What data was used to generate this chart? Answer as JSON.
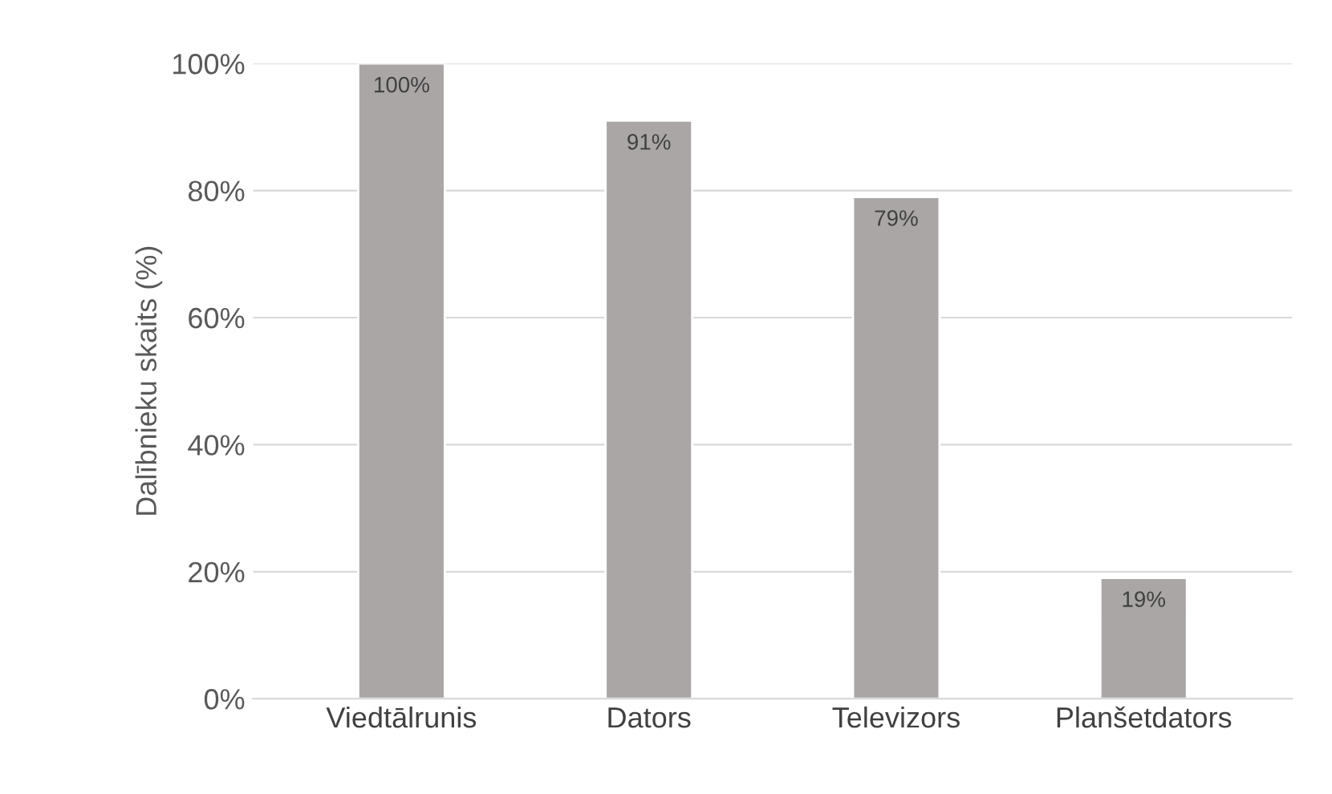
{
  "chart_data": {
    "type": "bar",
    "ylabel": "Dalībnieku skaits (%)",
    "categories": [
      "Viedtālrunis",
      "Dators",
      "Televizors",
      "Planšetdators"
    ],
    "values": [
      100,
      91,
      79,
      19
    ],
    "value_labels": [
      "100%",
      "91%",
      "79%",
      "19%"
    ],
    "color": "#aaa6a6",
    "ylim": [
      0,
      100
    ],
    "yticks": [
      {
        "value": 0,
        "label": "0%"
      },
      {
        "value": 20,
        "label": "20%"
      },
      {
        "value": 40,
        "label": "40%"
      },
      {
        "value": 60,
        "label": "60%"
      },
      {
        "value": 80,
        "label": "80%"
      },
      {
        "value": 100,
        "label": "100%"
      }
    ],
    "grid": "y",
    "legend": false
  }
}
